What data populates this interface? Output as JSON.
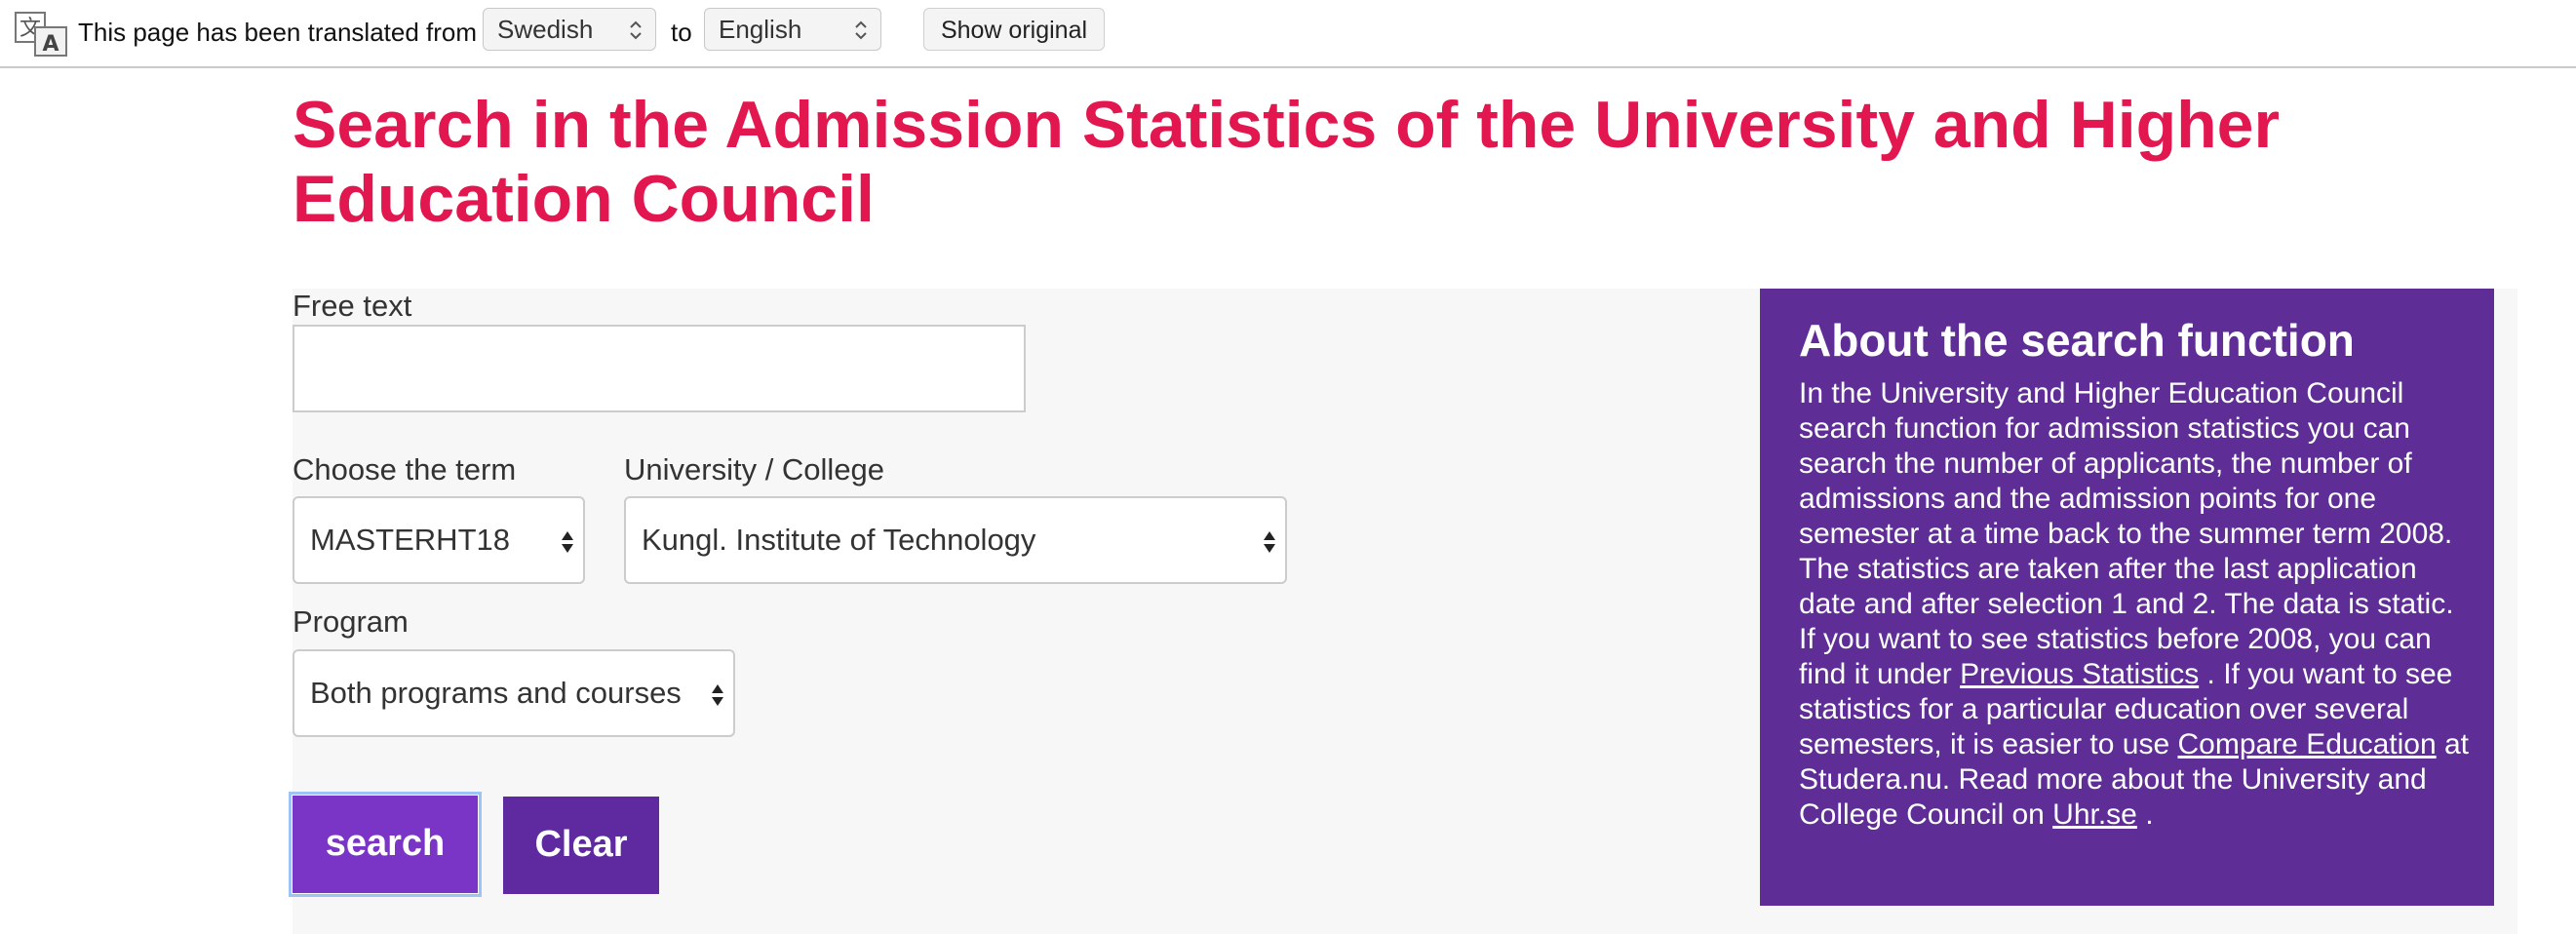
{
  "translate_bar": {
    "message": "This page has been translated from",
    "from_language": "Swedish",
    "to_word": "to",
    "to_language": "English",
    "show_original_label": "Show original",
    "icon": "translate-icon"
  },
  "page": {
    "title": "Search in the Admission Statistics of the University and Higher Education Council"
  },
  "form": {
    "free_text_label": "Free text",
    "free_text_value": "",
    "term_label": "Choose the term",
    "term_value": "MASTERHT18",
    "university_label": "University / College",
    "university_value": "Kungl. Institute of Technology",
    "program_label": "Program",
    "program_value": "Both programs and courses",
    "search_label": "search",
    "clear_label": "Clear"
  },
  "about": {
    "title": "About the search function",
    "text_1": "In the University and Higher Education Council search function for admission statistics you can search the number of applicants, the number of admissions and the admission points for one semester at a time back to the summer term 2008. The statistics are taken after the last application date and after selection 1 and 2. The data is static. If you want to see statistics before 2008, you can find it under ",
    "link_previous": "Previous Statistics",
    "text_2": " . If you want to see statistics for a particular education over several semesters, it is easier to use ",
    "link_compare": "Compare Education",
    "text_3": " at Studera.nu. Read more about the University and College Council on ",
    "link_uhr": "Uhr.se",
    "text_4": " ."
  },
  "colors": {
    "title": "#e3174f",
    "about_background": "#5e2d95",
    "search_button": "#7b35c6",
    "clear_button": "#5f2aa0"
  }
}
